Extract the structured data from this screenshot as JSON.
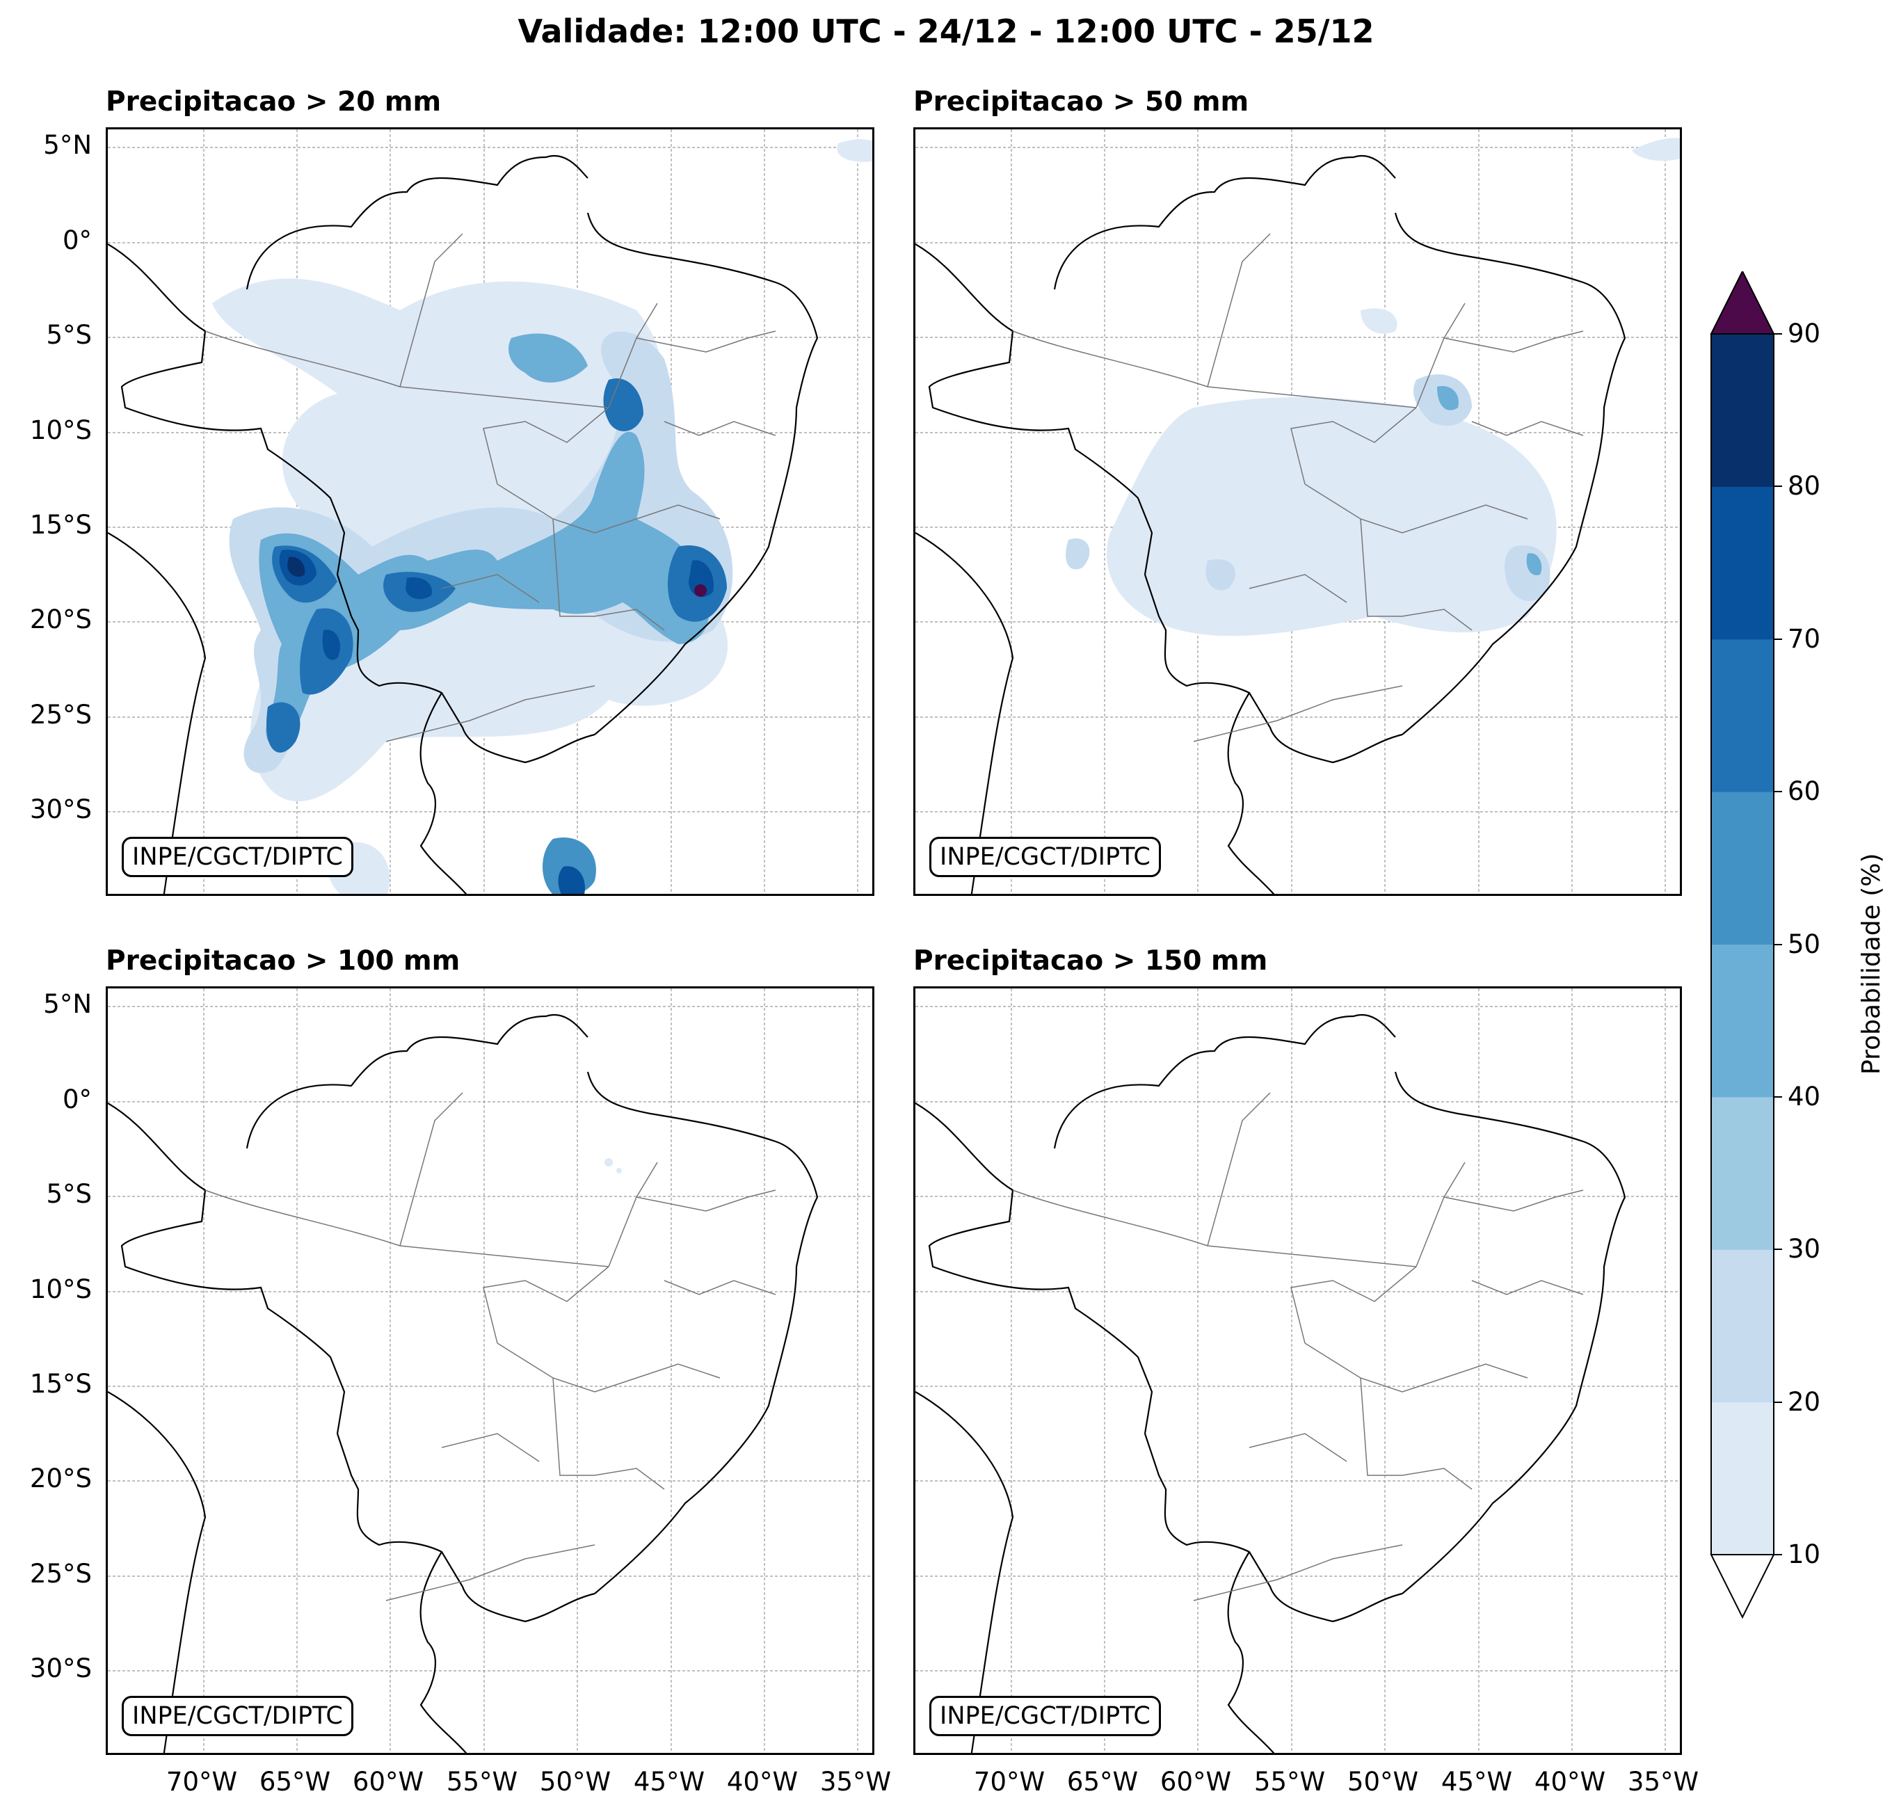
{
  "title": "Validade: 12:00 UTC - 24/12 - 12:00 UTC - 25/12",
  "panels": [
    {
      "title": "Precipitacao > 20 mm",
      "credit": "INPE/CGCT/DIPTC"
    },
    {
      "title": "Precipitacao > 50 mm",
      "credit": "INPE/CGCT/DIPTC"
    },
    {
      "title": "Precipitacao > 100 mm",
      "credit": "INPE/CGCT/DIPTC"
    },
    {
      "title": "Precipitacao > 150 mm",
      "credit": "INPE/CGCT/DIPTC"
    }
  ],
  "lat_labels": [
    "5°N",
    "0°",
    "5°S",
    "10°S",
    "15°S",
    "20°S",
    "25°S",
    "30°S"
  ],
  "lon_labels": [
    "70°W",
    "65°W",
    "60°W",
    "55°W",
    "50°W",
    "45°W",
    "40°W",
    "35°W"
  ],
  "colorbar": {
    "label": "Probabilidade (%)",
    "ticks": [
      "10",
      "20",
      "30",
      "40",
      "50",
      "60",
      "70",
      "80",
      "90"
    ],
    "colors": [
      "#dee9f6",
      "#c7dbef",
      "#9ecae1",
      "#6baed6",
      "#4292c6",
      "#2171b5",
      "#08519c",
      "#08306b"
    ],
    "over_color": "#4d0a4a",
    "under_color": "#ffffff"
  }
}
